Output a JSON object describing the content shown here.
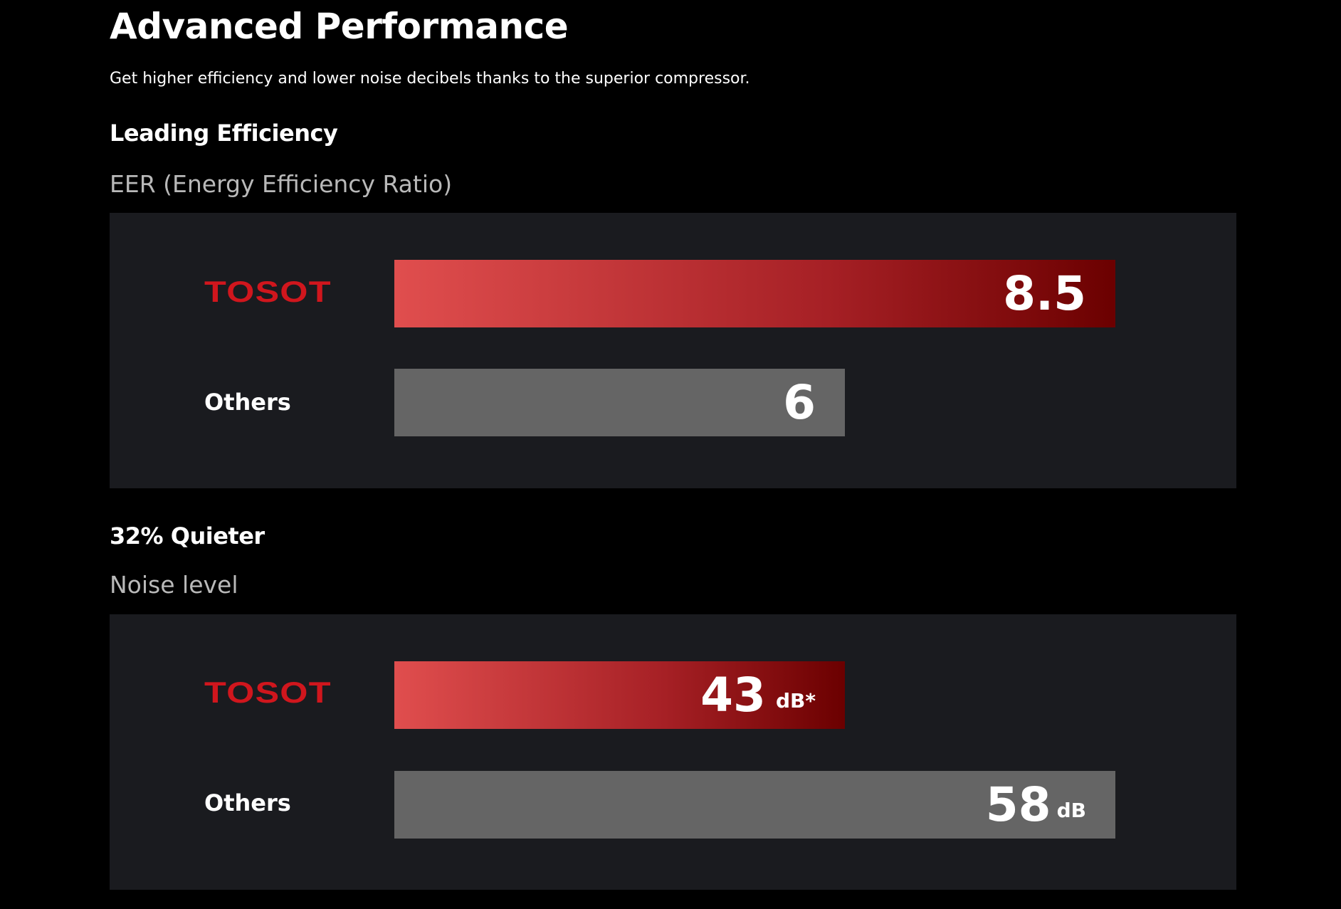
{
  "header": {
    "title": "Advanced Performance",
    "subtitle": "Get higher efficiency and lower noise decibels thanks to the superior compressor."
  },
  "sections": [
    {
      "heading": "Leading Efficiency",
      "metric": "EER (Energy Efficiency Ratio)",
      "rows": [
        {
          "label": "TOSOT",
          "value": 8.5
        },
        {
          "label": "Others",
          "value": 6
        }
      ]
    },
    {
      "heading": "32% Quieter",
      "metric": "Noise level",
      "rows": [
        {
          "label": "TOSOT",
          "value": 43,
          "unit": "dB*"
        },
        {
          "label": "Others",
          "value": 58,
          "unit": "dB"
        }
      ]
    }
  ]
}
